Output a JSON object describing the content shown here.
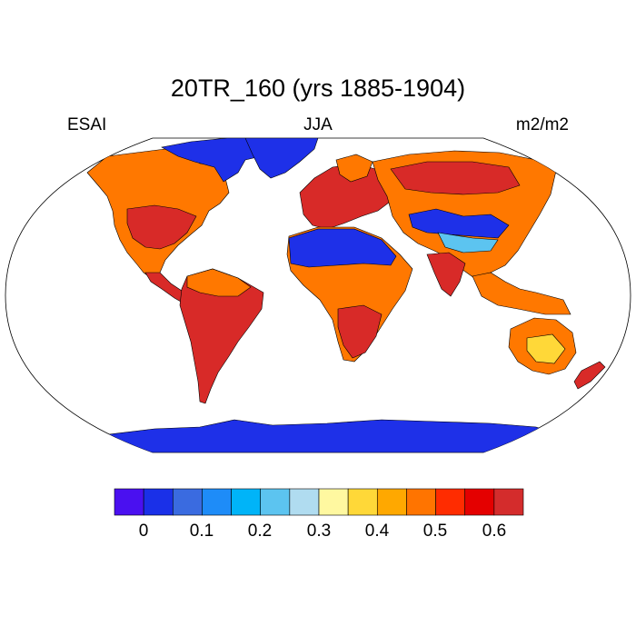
{
  "title": "20TR_160 (yrs 1885-1904)",
  "left_label": "ESAI",
  "center_label": "JJA",
  "right_label": "m2/m2",
  "colorbar": {
    "colors": [
      "#4a10f0",
      "#1a30e8",
      "#3a6be0",
      "#1e8cf8",
      "#00b4f8",
      "#5cc4f0",
      "#b0dcf0",
      "#fff8a0",
      "#ffd838",
      "#ffa800",
      "#ff7400",
      "#ff2c00",
      "#e40000",
      "#d42c2c"
    ],
    "labels": [
      "0",
      "0.1",
      "0.2",
      "0.3",
      "0.4",
      "0.5",
      "0.6"
    ]
  },
  "ocean_color": "#ffffff",
  "land_colors": {
    "high": "#d82a28",
    "mid": "#ff7800",
    "low": "#1e30e8",
    "light": "#5cc4f0",
    "yellow": "#ffd838"
  }
}
